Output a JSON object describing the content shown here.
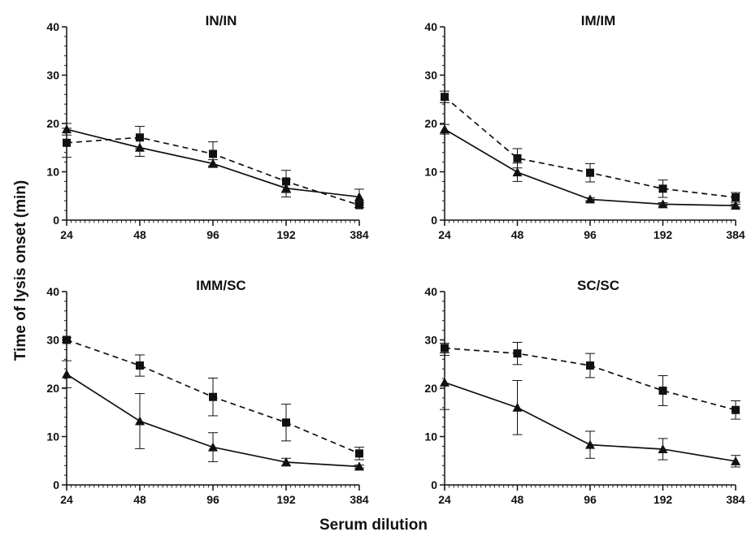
{
  "ylabel": "Time of lysis onset (min)",
  "xlabel": "Serum dilution",
  "chart_data": [
    {
      "type": "line",
      "title": "IN/IN",
      "x": [
        24,
        48,
        96,
        192,
        384
      ],
      "x_tick_labels": [
        "24",
        "48",
        "96",
        "192",
        "384"
      ],
      "xscale": "log2",
      "ylim": [
        0,
        40
      ],
      "y_ticks": [
        0,
        10,
        20,
        30,
        40
      ],
      "series": [
        {
          "marker": "square",
          "line": "dashed",
          "values": [
            16.0,
            17.1,
            13.7,
            8.0,
            3.1
          ],
          "errors": [
            3.0,
            2.3,
            2.5,
            2.3,
            0.5
          ]
        },
        {
          "marker": "triangle",
          "line": "solid",
          "values": [
            18.8,
            15.0,
            11.7,
            6.6,
            4.8
          ],
          "errors": [
            1.2,
            1.8,
            0.8,
            1.8,
            1.6
          ]
        }
      ]
    },
    {
      "type": "line",
      "title": "IM/IM",
      "x": [
        24,
        48,
        96,
        192,
        384
      ],
      "x_tick_labels": [
        "24",
        "48",
        "96",
        "192",
        "384"
      ],
      "xscale": "log2",
      "ylim": [
        0,
        40
      ],
      "y_ticks": [
        0,
        10,
        20,
        30,
        40
      ],
      "series": [
        {
          "marker": "square",
          "line": "dashed",
          "values": [
            25.5,
            12.8,
            9.8,
            6.5,
            4.7
          ],
          "errors": [
            1.2,
            2.0,
            1.9,
            1.8,
            1.0
          ]
        },
        {
          "marker": "triangle",
          "line": "solid",
          "values": [
            18.8,
            9.9,
            4.3,
            3.3,
            3.0
          ],
          "errors": [
            1.0,
            1.9,
            0.3,
            0.3,
            0.3
          ]
        }
      ]
    },
    {
      "type": "line",
      "title": "IMM/SC",
      "x": [
        24,
        48,
        96,
        192,
        384
      ],
      "x_tick_labels": [
        "24",
        "48",
        "96",
        "192",
        "384"
      ],
      "xscale": "log2",
      "ylim": [
        0,
        40
      ],
      "y_ticks": [
        0,
        10,
        20,
        30,
        40
      ],
      "series": [
        {
          "marker": "square",
          "line": "dashed",
          "values": [
            30.0,
            24.7,
            18.2,
            12.9,
            6.5
          ],
          "errors": [
            0.5,
            2.2,
            3.9,
            3.8,
            1.3
          ]
        },
        {
          "marker": "triangle",
          "line": "solid",
          "values": [
            22.9,
            13.2,
            7.8,
            4.7,
            3.8
          ],
          "errors": [
            2.8,
            5.7,
            3.0,
            0.8,
            0.3
          ]
        }
      ]
    },
    {
      "type": "line",
      "title": "SC/SC",
      "x": [
        24,
        48,
        96,
        192,
        384
      ],
      "x_tick_labels": [
        "24",
        "48",
        "96",
        "192",
        "384"
      ],
      "xscale": "log2",
      "ylim": [
        0,
        40
      ],
      "y_ticks": [
        0,
        10,
        20,
        30,
        40
      ],
      "series": [
        {
          "marker": "square",
          "line": "dashed",
          "values": [
            28.3,
            27.2,
            24.7,
            19.5,
            15.5
          ],
          "errors": [
            1.0,
            2.3,
            2.5,
            3.1,
            1.9
          ]
        },
        {
          "marker": "triangle",
          "line": "solid",
          "values": [
            21.2,
            16.0,
            8.3,
            7.4,
            4.9
          ],
          "errors": [
            5.6,
            5.6,
            2.8,
            2.2,
            1.2
          ]
        }
      ]
    }
  ]
}
